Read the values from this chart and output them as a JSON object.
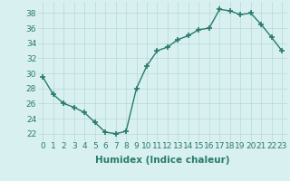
{
  "x": [
    0,
    1,
    2,
    3,
    4,
    5,
    6,
    7,
    8,
    9,
    10,
    11,
    12,
    13,
    14,
    15,
    16,
    17,
    18,
    19,
    20,
    21,
    22,
    23
  ],
  "y": [
    29.5,
    27.2,
    26.0,
    25.5,
    24.8,
    23.5,
    22.2,
    22.0,
    22.3,
    28.0,
    31.0,
    33.0,
    33.5,
    34.5,
    35.0,
    35.8,
    36.0,
    38.5,
    38.3,
    37.8,
    38.0,
    36.5,
    34.8,
    33.0
  ],
  "xlabel": "Humidex (Indice chaleur)",
  "xlim": [
    -0.5,
    23.5
  ],
  "ylim": [
    21.0,
    39.5
  ],
  "yticks": [
    22,
    24,
    26,
    28,
    30,
    32,
    34,
    36,
    38
  ],
  "xticks": [
    0,
    1,
    2,
    3,
    4,
    5,
    6,
    7,
    8,
    9,
    10,
    11,
    12,
    13,
    14,
    15,
    16,
    17,
    18,
    19,
    20,
    21,
    22,
    23
  ],
  "line_color": "#2a7a6e",
  "marker": "+",
  "marker_size": 4,
  "marker_lw": 1.2,
  "line_width": 1.0,
  "bg_color": "#d8f0f0",
  "grid_color": "#b8d8d8",
  "tick_label_fontsize": 6.5,
  "xlabel_fontsize": 7.5,
  "xlabel_fontweight": "bold"
}
